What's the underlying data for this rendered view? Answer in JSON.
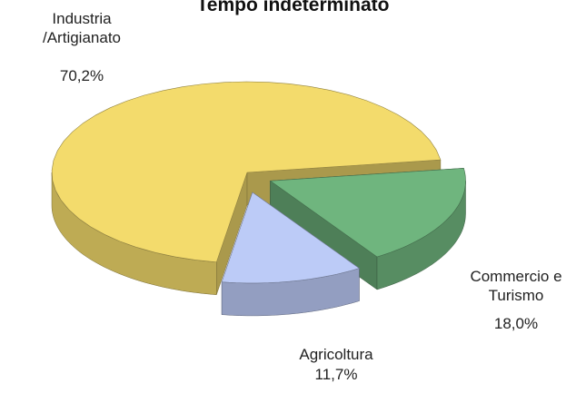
{
  "chart_data": {
    "type": "pie",
    "title": "Tempo indeterminato",
    "categories": [
      "Industria /Artigianato",
      "Commercio e Turismo",
      "Agricoltura"
    ],
    "values": [
      70.2,
      18.0,
      11.7
    ],
    "value_labels": [
      "70,2%",
      "18,0%",
      "11,7%"
    ],
    "colors": [
      "#f3db6c",
      "#6fb57e",
      "#bccbf7"
    ]
  }
}
